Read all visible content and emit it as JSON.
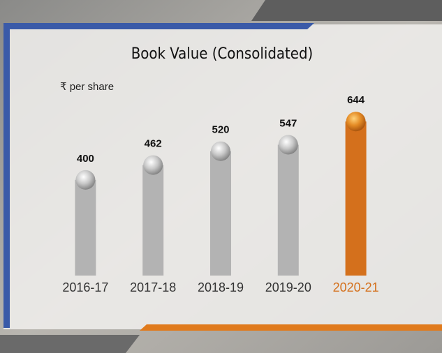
{
  "chart_data": {
    "type": "bar",
    "title": "Book Value (Consolidated)",
    "subtitle": "₹ per share",
    "categories": [
      "2016-17",
      "2017-18",
      "2018-19",
      "2019-20",
      "2020-21"
    ],
    "values": [
      400,
      462,
      520,
      547,
      644
    ],
    "colors": [
      "#b3b3b3",
      "#b3b3b3",
      "#b3b3b3",
      "#b3b3b3",
      "#d4701c"
    ],
    "ylim": [
      0,
      700
    ]
  }
}
